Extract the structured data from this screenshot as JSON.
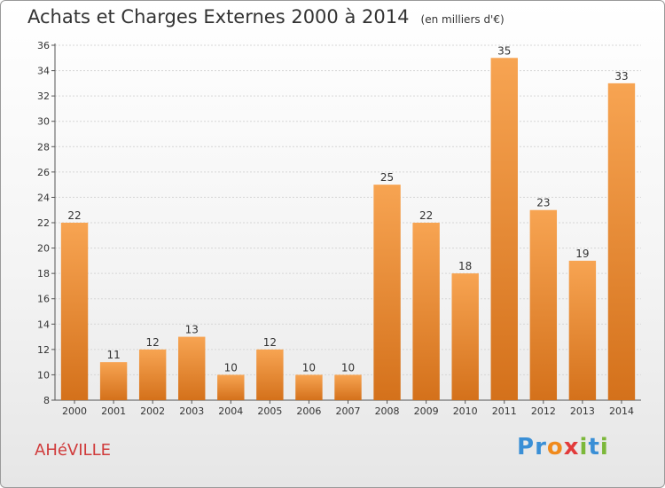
{
  "chart_data": {
    "type": "bar",
    "title": "Achats et Charges Externes 2000 à 2014",
    "unit_note": "(en milliers d'€)",
    "categories": [
      "2000",
      "2001",
      "2002",
      "2003",
      "2004",
      "2005",
      "2006",
      "2007",
      "2008",
      "2009",
      "2010",
      "2011",
      "2012",
      "2013",
      "2014"
    ],
    "values": [
      22,
      11,
      12,
      13,
      10,
      12,
      10,
      10,
      25,
      22,
      18,
      35,
      23,
      19,
      33
    ],
    "ylim": [
      8,
      36
    ],
    "yticks": [
      8,
      10,
      12,
      14,
      16,
      18,
      20,
      22,
      24,
      26,
      28,
      30,
      32,
      34,
      36
    ],
    "grid": true,
    "bar_color": "#f0923a",
    "xlabel": "",
    "ylabel": ""
  },
  "footer": {
    "town": "AHéVILLE",
    "logo_letters": [
      "P",
      "r",
      "o",
      "x",
      "i",
      "t",
      "i"
    ],
    "logo_colors": [
      "#3a8fd6",
      "#3a8fd6",
      "#f08a1c",
      "#e23b3b",
      "#7cb83a",
      "#3a8fd6",
      "#7cb83a"
    ]
  }
}
